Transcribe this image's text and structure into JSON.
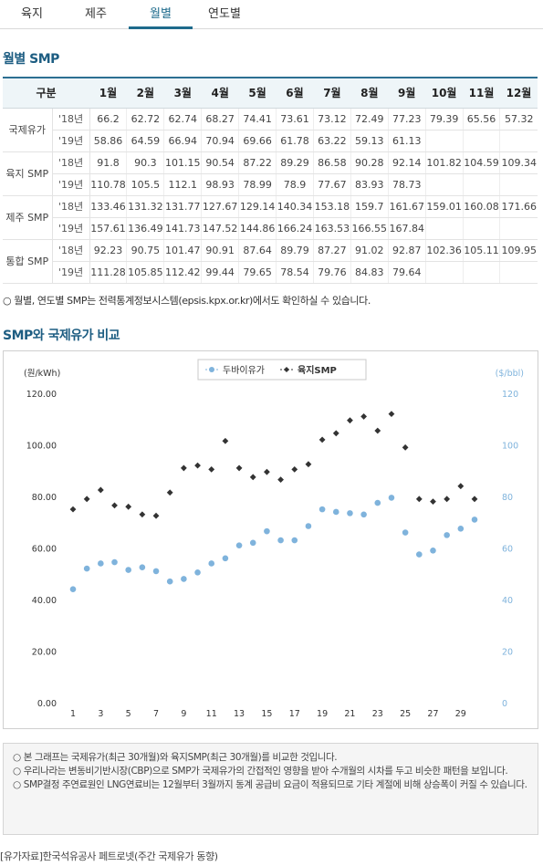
{
  "tabs": [
    {
      "label": "육지",
      "active": false
    },
    {
      "label": "제주",
      "active": false
    },
    {
      "label": "월별",
      "active": true
    },
    {
      "label": "연도별",
      "active": false
    }
  ],
  "table_section": {
    "title": "월별 SMP",
    "header_category": "구분",
    "months": [
      "1월",
      "2월",
      "3월",
      "4월",
      "5월",
      "6월",
      "7월",
      "8월",
      "9월",
      "10월",
      "11월",
      "12월"
    ],
    "groups": [
      {
        "category": "국제유가",
        "rows": [
          {
            "year": "'18년",
            "values": [
              "66.2",
              "62.72",
              "62.74",
              "68.27",
              "74.41",
              "73.61",
              "73.12",
              "72.49",
              "77.23",
              "79.39",
              "65.56",
              "57.32"
            ]
          },
          {
            "year": "'19년",
            "values": [
              "58.86",
              "64.59",
              "66.94",
              "70.94",
              "69.66",
              "61.78",
              "63.22",
              "59.13",
              "61.13",
              "",
              "",
              ""
            ]
          }
        ]
      },
      {
        "category": "육지 SMP",
        "rows": [
          {
            "year": "'18년",
            "values": [
              "91.8",
              "90.3",
              "101.15",
              "90.54",
              "87.22",
              "89.29",
              "86.58",
              "90.28",
              "92.14",
              "101.82",
              "104.59",
              "109.34"
            ]
          },
          {
            "year": "'19년",
            "values": [
              "110.78",
              "105.5",
              "112.1",
              "98.93",
              "78.99",
              "78.9",
              "77.67",
              "83.93",
              "78.73",
              "",
              "",
              ""
            ]
          }
        ]
      },
      {
        "category": "제주 SMP",
        "rows": [
          {
            "year": "'18년",
            "values": [
              "133.46",
              "131.32",
              "131.77",
              "127.67",
              "129.14",
              "140.34",
              "153.18",
              "159.7",
              "161.67",
              "159.01",
              "160.08",
              "171.66"
            ]
          },
          {
            "year": "'19년",
            "values": [
              "157.61",
              "136.49",
              "141.73",
              "147.52",
              "144.86",
              "166.24",
              "163.53",
              "166.55",
              "167.84",
              "",
              "",
              ""
            ]
          }
        ]
      },
      {
        "category": "통합 SMP",
        "rows": [
          {
            "year": "'18년",
            "values": [
              "92.23",
              "90.75",
              "101.47",
              "90.91",
              "87.64",
              "89.79",
              "87.27",
              "91.02",
              "92.87",
              "102.36",
              "105.11",
              "109.95"
            ]
          },
          {
            "year": "'19년",
            "values": [
              "111.28",
              "105.85",
              "112.42",
              "99.44",
              "79.65",
              "78.54",
              "79.76",
              "84.83",
              "79.64",
              "",
              "",
              ""
            ]
          }
        ]
      }
    ],
    "note": "○ 월별, 연도별 SMP는 전력통계정보시스템(epsis.kpx.or.kr)에서도 확인하실 수 있습니다."
  },
  "chart_section": {
    "title": "SMP와 국제유가 비교"
  },
  "chart_data": {
    "type": "scatter",
    "left_unit": "(원/kWh)",
    "right_unit": "($/bbl)",
    "legend_position": "top-center",
    "x": [
      1,
      2,
      3,
      4,
      5,
      6,
      7,
      8,
      9,
      10,
      11,
      12,
      13,
      14,
      15,
      16,
      17,
      18,
      19,
      20,
      21,
      22,
      23,
      24,
      25,
      26,
      27,
      28,
      29,
      30
    ],
    "x_ticks": [
      "1",
      "3",
      "5",
      "7",
      "9",
      "11",
      "13",
      "15",
      "17",
      "19",
      "21",
      "23",
      "25",
      "27",
      "29"
    ],
    "y_left_ticks": [
      "0.00",
      "20.00",
      "40.00",
      "60.00",
      "80.00",
      "100.00",
      "120.00"
    ],
    "y_right_ticks": [
      "0",
      "20",
      "40",
      "60",
      "80",
      "100",
      "120"
    ],
    "ylim": [
      0,
      120
    ],
    "grid": false,
    "series": [
      {
        "name": "두바이유가",
        "color": "#7fb3dc",
        "marker": "circle",
        "axis": "right",
        "values": [
          44,
          52,
          54,
          54.5,
          51.5,
          52.5,
          51,
          47,
          48,
          50.5,
          54,
          56,
          61,
          62,
          66.5,
          63,
          63,
          68.5,
          75,
          74,
          73.5,
          73,
          77.5,
          79.5,
          66,
          57.5,
          59,
          65,
          67.5,
          71
        ]
      },
      {
        "name": "육지SMP",
        "color": "#333333",
        "marker": "diamond",
        "axis": "left",
        "values": [
          75,
          79,
          82.5,
          76.5,
          76,
          73,
          72.5,
          81.5,
          91,
          92,
          90.5,
          101.5,
          91,
          87.5,
          89.5,
          86.5,
          90.5,
          92.5,
          102,
          104.5,
          109.5,
          111,
          105.5,
          112,
          99,
          79,
          78,
          79,
          84,
          79
        ]
      }
    ]
  },
  "info": {
    "lines": [
      "○ 본 그래프는 국제유가(최근 30개월)와 육지SMP(최근 30개월)를 비교한 것입니다.",
      "○ 우리나라는 변동비기반시장(CBP)으로 SMP가 국제유가의 간접적인 영향을 받아 수개월의 시차를 두고 비슷한 패턴을 보입니다.",
      "○ SMP결정 주연료원인 LNG연료비는 12월부터 3월까지 동계 공급비 요금이 적용되므로 기타 계절에 비해 상승폭이 커질 수 있습니다."
    ]
  },
  "source": "[유가자료]한국석유공사 페트로넷(주간 국제유가 동향)"
}
